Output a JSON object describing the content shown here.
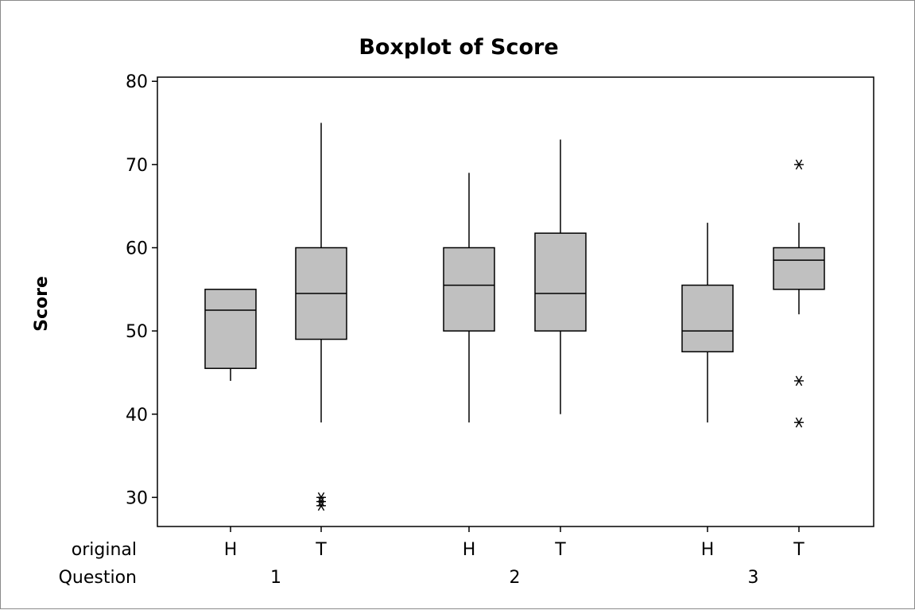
{
  "chart_data": {
    "type": "boxplot",
    "title": "Boxplot of Score",
    "ylabel": "Score",
    "ylim": [
      26.5,
      80.5
    ],
    "yticks": [
      30,
      40,
      50,
      60,
      70,
      80
    ],
    "grid": false,
    "legend": "none",
    "box_color": "#c0c0c0",
    "x_factor_labels": [
      "original",
      "Question"
    ],
    "groups": [
      {
        "question": "1",
        "original": "H",
        "whisker_low": 44,
        "q1": 45.5,
        "median": 52.5,
        "q3": 55,
        "whisker_high": 55,
        "outliers": []
      },
      {
        "question": "1",
        "original": "T",
        "whisker_low": 39,
        "q1": 49,
        "median": 54.5,
        "q3": 60,
        "whisker_high": 75,
        "outliers": [
          30,
          29.5,
          29
        ]
      },
      {
        "question": "2",
        "original": "H",
        "whisker_low": 39,
        "q1": 50,
        "median": 55.5,
        "q3": 60,
        "whisker_high": 69,
        "outliers": []
      },
      {
        "question": "2",
        "original": "T",
        "whisker_low": 40,
        "q1": 50,
        "median": 54.5,
        "q3": 61.75,
        "whisker_high": 73,
        "outliers": []
      },
      {
        "question": "3",
        "original": "H",
        "whisker_low": 39,
        "q1": 47.5,
        "median": 50,
        "q3": 55.5,
        "whisker_high": 63,
        "outliers": []
      },
      {
        "question": "3",
        "original": "T",
        "whisker_low": 52,
        "q1": 55,
        "median": 58.5,
        "q3": 60,
        "whisker_high": 63,
        "outliers": [
          70,
          44,
          39
        ]
      }
    ],
    "questions": [
      "1",
      "2",
      "3"
    ]
  }
}
